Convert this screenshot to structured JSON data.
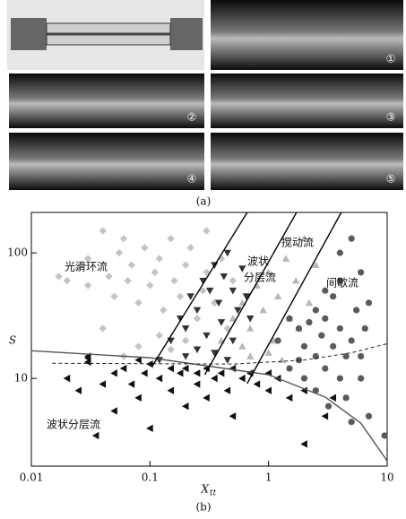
{
  "figure": {
    "panel_a_labels": [
      "①",
      "②",
      "③",
      "④",
      "⑤"
    ],
    "caption_a": "(a)",
    "caption_b": "(b)"
  },
  "chart_data": {
    "type": "scatter",
    "xlog": true,
    "ylog": true,
    "xlim": [
      0.01,
      10
    ],
    "ylim": [
      2,
      210
    ],
    "xticks": [
      0.01,
      0.1,
      1,
      10
    ],
    "yticks": [
      10,
      100
    ],
    "xlabel": "X",
    "xlabel_subscript": "tt",
    "ylabel": "S",
    "annotations": [
      "光滑环流",
      "波状",
      "分层流",
      "搅动流",
      "间歇流",
      "波状分层流"
    ],
    "series": [
      {
        "marker": "diamond",
        "color": "#c4c4c4",
        "x": [
          0.02,
          0.025,
          0.03,
          0.03,
          0.04,
          0.045,
          0.05,
          0.055,
          0.06,
          0.065,
          0.07,
          0.08,
          0.09,
          0.1,
          0.11,
          0.12,
          0.13,
          0.15,
          0.16,
          0.18,
          0.2,
          0.22,
          0.25,
          0.28,
          0.3,
          0.35,
          0.4,
          0.45,
          0.5,
          0.06,
          0.08,
          0.12,
          0.15,
          0.2,
          0.04,
          0.3,
          0.017
        ],
        "y": [
          60,
          75,
          55,
          90,
          150,
          65,
          45,
          100,
          130,
          60,
          80,
          40,
          110,
          55,
          70,
          90,
          35,
          130,
          60,
          45,
          80,
          110,
          30,
          50,
          70,
          40,
          90,
          25,
          60,
          15,
          18,
          22,
          17,
          20,
          25,
          150,
          65
        ]
      },
      {
        "marker": "triangle-down",
        "color": "#333333",
        "x": [
          0.12,
          0.15,
          0.18,
          0.2,
          0.22,
          0.25,
          0.28,
          0.3,
          0.32,
          0.35,
          0.38,
          0.4,
          0.42,
          0.45,
          0.5,
          0.55,
          0.6,
          0.65,
          0.7,
          0.25,
          0.35,
          0.5,
          0.45,
          0.2
        ],
        "y": [
          14,
          20,
          30,
          25,
          45,
          35,
          60,
          22,
          50,
          80,
          40,
          28,
          65,
          100,
          50,
          35,
          75,
          45,
          30,
          17,
          16,
          20,
          14,
          15
        ]
      },
      {
        "marker": "triangle-up",
        "color": "#b8b8b8",
        "x": [
          0.4,
          0.5,
          0.6,
          0.7,
          0.8,
          0.9,
          1.0,
          1.1,
          1.2,
          1.4,
          1.5,
          1.7,
          2.0,
          2.2,
          2.5,
          0.7,
          1.0,
          1.3,
          0.6,
          1.8
        ],
        "y": [
          20,
          30,
          40,
          25,
          55,
          35,
          70,
          20,
          45,
          90,
          30,
          60,
          130,
          40,
          80,
          15,
          16,
          14,
          18,
          25
        ]
      },
      {
        "marker": "circle",
        "color": "#5a5a5a",
        "x": [
          1.2,
          1.5,
          1.5,
          1.8,
          2,
          2,
          2.2,
          2.5,
          2.5,
          2.8,
          3,
          3,
          3.2,
          3.5,
          3.5,
          4,
          4,
          4,
          4.5,
          4.5,
          5,
          5,
          5,
          5.5,
          6,
          6,
          6.5,
          7,
          7,
          9.5,
          4,
          3,
          2.5,
          1.8,
          6
        ],
        "y": [
          20,
          30,
          12,
          25,
          10,
          18,
          28,
          8,
          15,
          22,
          12,
          30,
          6,
          18,
          45,
          10,
          25,
          60,
          7,
          15,
          4.5,
          20,
          130,
          35,
          10,
          70,
          25,
          5,
          40,
          3.5,
          100,
          50,
          35,
          14,
          15
        ]
      },
      {
        "marker": "triangle-left",
        "color": "#111111",
        "x": [
          0.02,
          0.025,
          0.03,
          0.03,
          0.04,
          0.05,
          0.05,
          0.06,
          0.07,
          0.08,
          0.09,
          0.1,
          0.1,
          0.12,
          0.15,
          0.15,
          0.18,
          0.2,
          0.2,
          0.25,
          0.25,
          0.3,
          0.3,
          0.35,
          0.4,
          0.45,
          0.5,
          0.5,
          0.6,
          0.7,
          0.8,
          1,
          1,
          1.2,
          1.5,
          2,
          2,
          3,
          3.5,
          0.035,
          0.08,
          0.03
        ],
        "y": [
          10,
          8,
          15,
          13.5,
          9,
          5.5,
          11,
          12,
          9,
          7,
          11,
          4,
          13,
          10,
          12,
          8,
          11,
          6,
          12,
          9,
          11,
          7,
          12,
          10,
          11,
          8,
          12,
          5,
          10,
          11,
          9,
          8,
          11,
          10,
          7,
          8,
          3,
          5,
          7,
          3.5,
          14,
          14.5
        ]
      }
    ],
    "curves": [
      {
        "style": "solid",
        "color": "#555555",
        "x": [
          0.01,
          0.1,
          1,
          3,
          6,
          10
        ],
        "y": [
          16.6,
          14.6,
          10.7,
          7.1,
          4.4,
          2.2
        ]
      },
      {
        "style": "dashed",
        "color": "#222222",
        "x": [
          0.015,
          0.5,
          2,
          5,
          10
        ],
        "y": [
          13.2,
          13,
          14,
          16,
          18.9
        ]
      },
      {
        "style": "solid",
        "color": "#000000",
        "x": [
          0.105,
          0.66
        ],
        "y": [
          12.6,
          210
        ]
      },
      {
        "style": "solid",
        "color": "#000000",
        "x": [
          0.29,
          1.72
        ],
        "y": [
          10.7,
          210
        ]
      },
      {
        "style": "solid",
        "color": "#000000",
        "x": [
          0.66,
          4.1
        ],
        "y": [
          9.1,
          210
        ]
      }
    ]
  }
}
